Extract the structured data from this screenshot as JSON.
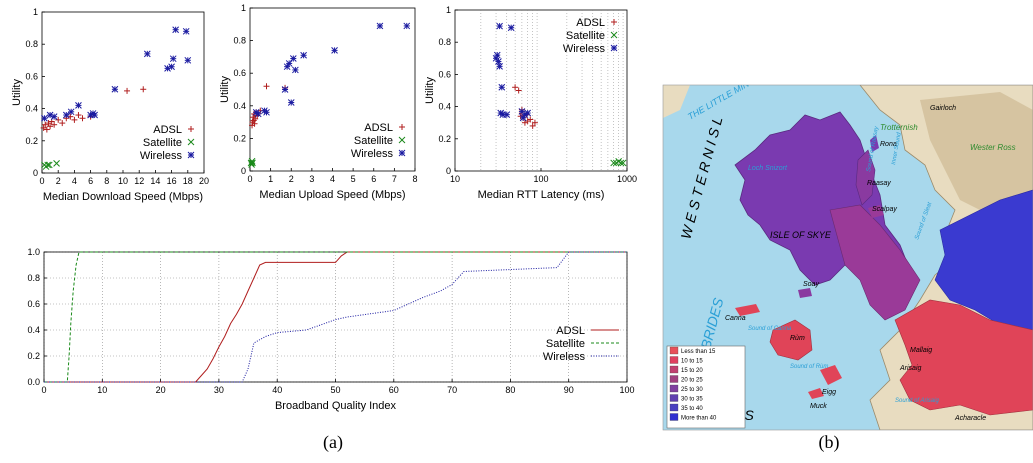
{
  "colors": {
    "adsl": "#b01e1e",
    "satellite": "#1a8a1a",
    "wireless": "#1a1aa0",
    "grid": "#888888",
    "sea": "#a8d8ec",
    "land": "#e8dcc0",
    "highland": "#c9b48c",
    "water_label": "#2a9fd6"
  },
  "captions": {
    "a": "(a)",
    "b": "(b)"
  },
  "chart_data": [
    {
      "id": "download",
      "type": "scatter",
      "xlabel": "Median Download Speed (Mbps)",
      "ylabel": "Utility",
      "xlim": [
        0,
        20
      ],
      "ylim": [
        0,
        1
      ],
      "xticks": [
        "0",
        "2",
        "4",
        "6",
        "8",
        "10",
        "12",
        "14",
        "16",
        "18",
        "20"
      ],
      "yticks": [
        "0",
        "0.2",
        "0.4",
        "0.6",
        "0.8",
        "1"
      ],
      "legend": "bottom-right",
      "series": [
        {
          "name": "ADSL",
          "marker": "plus",
          "color": "adsl",
          "x": [
            0.2,
            0.4,
            0.6,
            0.8,
            1.0,
            1.2,
            1.5,
            2.0,
            2.5,
            3.0,
            3.5,
            4.0,
            4.5,
            5.0,
            6.0,
            10.5,
            12.5
          ],
          "y": [
            0.28,
            0.3,
            0.27,
            0.31,
            0.29,
            0.32,
            0.3,
            0.33,
            0.31,
            0.34,
            0.35,
            0.33,
            0.36,
            0.34,
            0.35,
            0.51,
            0.52
          ]
        },
        {
          "name": "Satellite",
          "marker": "cross",
          "color": "satellite",
          "x": [
            0.3,
            0.5,
            0.7,
            0.9,
            1.8
          ],
          "y": [
            0.05,
            0.04,
            0.05,
            0.05,
            0.06
          ]
        },
        {
          "name": "Wireless",
          "marker": "star",
          "color": "wireless",
          "x": [
            0.3,
            1.0,
            1.5,
            3.0,
            3.6,
            4.5,
            6.0,
            6.3,
            6.5,
            9.0,
            13.0,
            15.5,
            16.0,
            16.2,
            16.5,
            17.8,
            18.0
          ],
          "y": [
            0.34,
            0.36,
            0.35,
            0.36,
            0.38,
            0.42,
            0.36,
            0.37,
            0.36,
            0.52,
            0.74,
            0.65,
            0.66,
            0.71,
            0.89,
            0.88,
            0.7
          ]
        }
      ]
    },
    {
      "id": "upload",
      "type": "scatter",
      "xlabel": "Median Upload Speed (Mbps)",
      "ylabel": "Utility",
      "xlim": [
        0,
        8
      ],
      "ylim": [
        0,
        1
      ],
      "xticks": [
        "0",
        "1",
        "2",
        "3",
        "4",
        "5",
        "6",
        "7",
        "8"
      ],
      "yticks": [
        "0",
        "0.2",
        "0.4",
        "0.6",
        "0.8",
        "1"
      ],
      "legend": "bottom-right",
      "series": [
        {
          "name": "ADSL",
          "marker": "plus",
          "color": "adsl",
          "x": [
            0.1,
            0.12,
            0.15,
            0.18,
            0.2,
            0.22,
            0.25,
            0.3,
            0.35,
            0.5,
            0.8,
            1.7
          ],
          "y": [
            0.28,
            0.3,
            0.33,
            0.31,
            0.35,
            0.29,
            0.32,
            0.36,
            0.34,
            0.37,
            0.52,
            0.51
          ]
        },
        {
          "name": "Satellite",
          "marker": "cross",
          "color": "satellite",
          "x": [
            0.05,
            0.08,
            0.1,
            0.12
          ],
          "y": [
            0.05,
            0.04,
            0.06,
            0.05
          ]
        },
        {
          "name": "Wireless",
          "marker": "star",
          "color": "wireless",
          "x": [
            0.3,
            0.4,
            0.7,
            0.8,
            1.7,
            1.8,
            1.9,
            2.0,
            2.1,
            2.2,
            2.6,
            4.1,
            6.3,
            7.6
          ],
          "y": [
            0.36,
            0.35,
            0.37,
            0.36,
            0.5,
            0.64,
            0.66,
            0.42,
            0.69,
            0.62,
            0.71,
            0.74,
            0.89,
            0.89
          ]
        }
      ]
    },
    {
      "id": "rtt",
      "type": "scatter",
      "xscale": "log",
      "xlabel": "Median RTT Latency (ms)",
      "ylabel": "Utility",
      "xlim": [
        10,
        1000
      ],
      "ylim": [
        0,
        1
      ],
      "xticks": [
        "10",
        "100",
        "1000"
      ],
      "yticks": [
        "0",
        "0.2",
        "0.4",
        "0.6",
        "0.8",
        "1"
      ],
      "legend": "top-right",
      "series": [
        {
          "name": "ADSL",
          "marker": "plus",
          "color": "adsl",
          "x": [
            50,
            55,
            60,
            62,
            65,
            68,
            70,
            75,
            80,
            85,
            60,
            58
          ],
          "y": [
            0.52,
            0.5,
            0.36,
            0.33,
            0.3,
            0.35,
            0.31,
            0.32,
            0.28,
            0.3,
            0.38,
            0.34
          ]
        },
        {
          "name": "Satellite",
          "marker": "cross",
          "color": "satellite",
          "x": [
            700,
            750,
            800,
            850,
            900
          ],
          "y": [
            0.05,
            0.05,
            0.06,
            0.05,
            0.05
          ]
        },
        {
          "name": "Wireless",
          "marker": "star",
          "color": "wireless",
          "x": [
            30,
            31,
            32,
            33,
            34,
            35,
            36,
            40,
            45,
            60,
            62,
            65,
            70,
            33
          ],
          "y": [
            0.7,
            0.72,
            0.68,
            0.65,
            0.36,
            0.52,
            0.35,
            0.35,
            0.89,
            0.37,
            0.33,
            0.35,
            0.36,
            0.9
          ]
        }
      ]
    },
    {
      "id": "bqi-cdf",
      "type": "line",
      "xlabel": "Broadband Quality Index",
      "ylabel": "",
      "xlim": [
        0,
        100
      ],
      "ylim": [
        0,
        1
      ],
      "xticks": [
        "0",
        "10",
        "20",
        "30",
        "40",
        "50",
        "60",
        "70",
        "80",
        "90",
        "100"
      ],
      "yticks": [
        "0.0",
        "0.2",
        "0.4",
        "0.6",
        "0.8",
        "1.0"
      ],
      "legend": "right",
      "series": [
        {
          "name": "ADSL",
          "style": "solid",
          "color": "adsl",
          "x": [
            0,
            26,
            27,
            28,
            29,
            30,
            31,
            32,
            33,
            34,
            35,
            36,
            37,
            38,
            50,
            51,
            52,
            100
          ],
          "y": [
            0,
            0,
            0.05,
            0.1,
            0.18,
            0.27,
            0.35,
            0.45,
            0.52,
            0.6,
            0.7,
            0.8,
            0.9,
            0.92,
            0.92,
            0.97,
            1.0,
            1.0
          ]
        },
        {
          "name": "Satellite",
          "style": "dashed",
          "color": "satellite",
          "x": [
            0,
            4,
            4.3,
            4.6,
            5.0,
            5.5,
            6.0,
            100
          ],
          "y": [
            0,
            0,
            0.2,
            0.45,
            0.7,
            0.9,
            1.0,
            1.0
          ]
        },
        {
          "name": "Wireless",
          "style": "dotted",
          "color": "wireless",
          "x": [
            0,
            34,
            35,
            36,
            38,
            40,
            45,
            50,
            52,
            60,
            65,
            68,
            70,
            72,
            88,
            90,
            100
          ],
          "y": [
            0,
            0,
            0.1,
            0.3,
            0.35,
            0.38,
            0.4,
            0.48,
            0.5,
            0.55,
            0.65,
            0.7,
            0.75,
            0.85,
            0.88,
            1.0,
            1.0
          ]
        }
      ]
    }
  ],
  "map": {
    "labels": [
      "ISLE OF SKYE",
      "Trotternish",
      "Raasay",
      "Scalpay",
      "Rona",
      "Soay",
      "Canna",
      "Rùm",
      "Eigg",
      "Muck",
      "Mallaig",
      "THE LITTLE MINCH",
      "Loch Snizort",
      "Sound of Raasay",
      "Inner Sound",
      "Sound of Sleat",
      "Sound of Canna",
      "Sound of Rùm",
      "Sound of Arisaig",
      "Wester Ross",
      "Gairloch",
      "Acharacle",
      "Arisaig",
      "W E S T E R N   I S L",
      "BRIDES",
      "DES",
      "R"
    ],
    "legend": [
      "Less than 15",
      "10 to 15",
      "15 to 20",
      "20 to 25",
      "25 to 30",
      "30 to 35",
      "35 to 40",
      "More than 40"
    ],
    "legend_colors": [
      "#e8505a",
      "#e04060",
      "#c04070",
      "#a04080",
      "#8040a0",
      "#6040b0",
      "#4a40c0",
      "#3030d0"
    ]
  }
}
